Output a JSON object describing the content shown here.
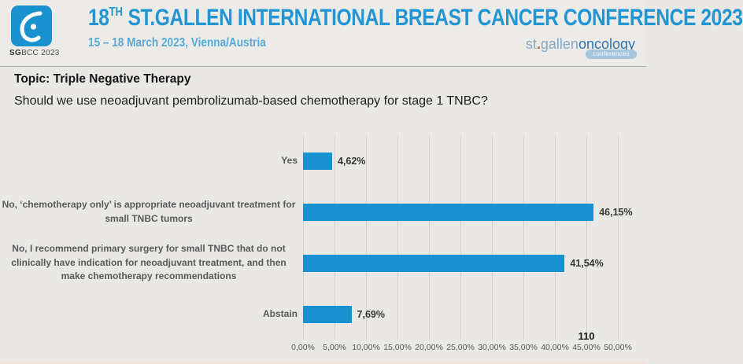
{
  "header": {
    "logo": {
      "icon": "sgbcc-breast-logo",
      "caption_bold": "SG",
      "caption_rest": "BCC 2023"
    },
    "title_prefix": "18",
    "title_superscript": "TH",
    "title_rest": " ST.GALLEN INTERNATIONAL BREAST CANCER CONFERENCE 2023",
    "subtitle": "15 – 18 March 2023, Vienna/Austria",
    "partner_logo": {
      "part_st": "st",
      "dot": ".",
      "part_gallen": "gallen",
      "part_oncology": "oncology",
      "badge": "conferences"
    }
  },
  "topic": {
    "label": "Topic: Triple Negative Therapy",
    "question": "Should we use neoadjuvant pembrolizumab-based chemotherapy for stage 1 TNBC?"
  },
  "chart_data": {
    "type": "bar",
    "orientation": "horizontal",
    "title": "Should we use neoadjuvant pembrolizumab-based chemotherapy for stage 1 TNBC?",
    "categories": [
      "Yes",
      "No, ‘chemotherapy only’ is appropriate neoadjuvant treatment for small TNBC tumors",
      "No, I recommend primary surgery for small TNBC that do not clinically have indication for neoadjuvant treatment, and then make chemotherapy recommendations",
      "Abstain"
    ],
    "values": [
      4.62,
      46.15,
      41.54,
      7.69
    ],
    "value_labels": [
      "4,62%",
      "46,15%",
      "41,54%",
      "7,69%"
    ],
    "x_ticks": [
      "0,00%",
      "5,00%",
      "10,00%",
      "15,00%",
      "20,00%",
      "25,00%",
      "30,00%",
      "35,00%",
      "40,00%",
      "45,00%",
      "50,00%"
    ],
    "xlim": [
      0,
      50
    ],
    "grid": true,
    "legend": "none",
    "vote_count": "110",
    "bar_color": "#1791d0"
  },
  "colors": {
    "background": "#e9e8e5",
    "header_background": "#ecebe8",
    "title_blue": "#2196d3",
    "subtitle_blue": "#58a9d6",
    "logo_blue": "#1b92d0",
    "bar_blue": "#1791d0",
    "gridline_gray": "#d3d2ce",
    "category_label_gray": "#595959",
    "partner_light_blue": "#85aac8",
    "partner_dark_blue": "#2e74b0",
    "partner_orange": "#d55f2a",
    "badge_blue": "#a3c5dd"
  }
}
